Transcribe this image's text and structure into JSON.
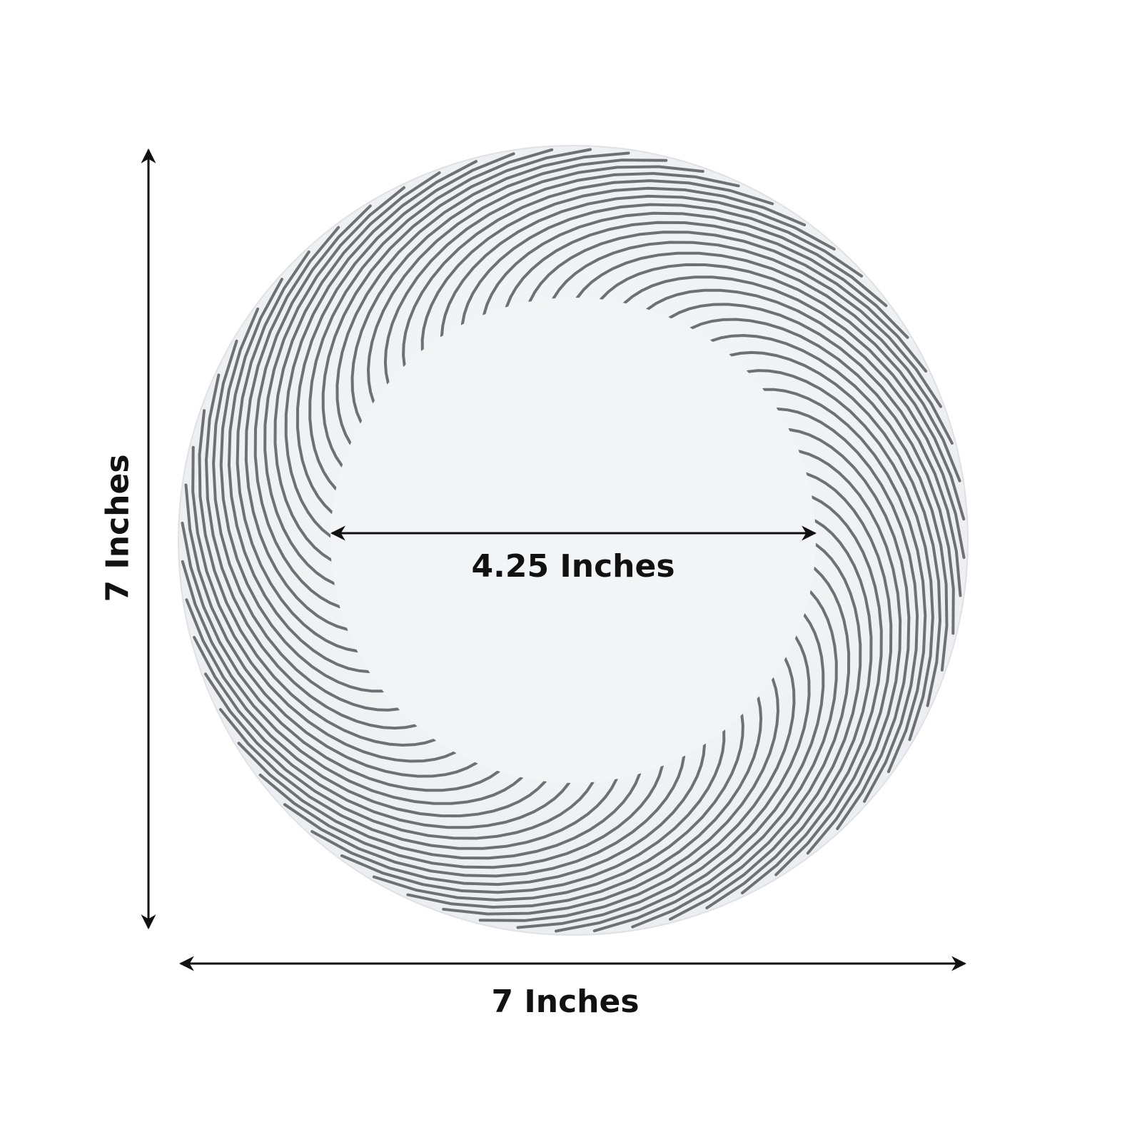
{
  "product": "white plate with silver swirl rim",
  "dimensions": {
    "height_label": "7 Inches",
    "width_label": "7 Inches",
    "inner_diameter_label": "4.25 Inches"
  },
  "colors": {
    "plate": "#f4f5f7",
    "stripe": "#6e7074",
    "arrow": "#111111"
  }
}
